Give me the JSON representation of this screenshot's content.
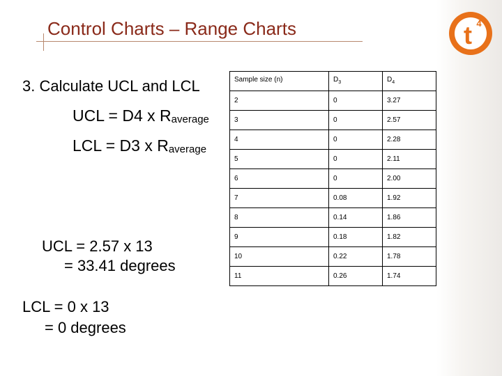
{
  "slide": {
    "title": "Control Charts – Range Charts",
    "logo": {
      "letter": "t",
      "superscript": "4"
    },
    "step": "3. Calculate UCL and LCL",
    "ucl_formula": {
      "prefix": "UCL = D4 x R",
      "sub": "average"
    },
    "lcl_formula": {
      "prefix": "LCL = D3 x R",
      "sub": "average"
    },
    "ucl_calc": {
      "line1": "UCL = 2.57 x 13",
      "line2": "= 33.41 degrees"
    },
    "lcl_calc": {
      "line1": "LCL = 0 x 13",
      "line2": "= 0  degrees"
    }
  },
  "table": {
    "header": {
      "col1": "Sample size (n)",
      "col2": {
        "base": "D",
        "sub": "3"
      },
      "col3": {
        "base": "D",
        "sub": "4"
      }
    },
    "rows": [
      [
        "2",
        "0",
        "3.27"
      ],
      [
        "3",
        "0",
        "2.57"
      ],
      [
        "4",
        "0",
        "2.28"
      ],
      [
        "5",
        "0",
        "2.11"
      ],
      [
        "6",
        "0",
        "2.00"
      ],
      [
        "7",
        "0.08",
        "1.92"
      ],
      [
        "8",
        "0.14",
        "1.86"
      ],
      [
        "9",
        "0.18",
        "1.82"
      ],
      [
        "10",
        "0.22",
        "1.78"
      ],
      [
        "11",
        "0.26",
        "1.74"
      ]
    ]
  },
  "colors": {
    "title": "#8a2a1a",
    "logo_orange": "#e8711a",
    "rule": "#b8896e"
  }
}
